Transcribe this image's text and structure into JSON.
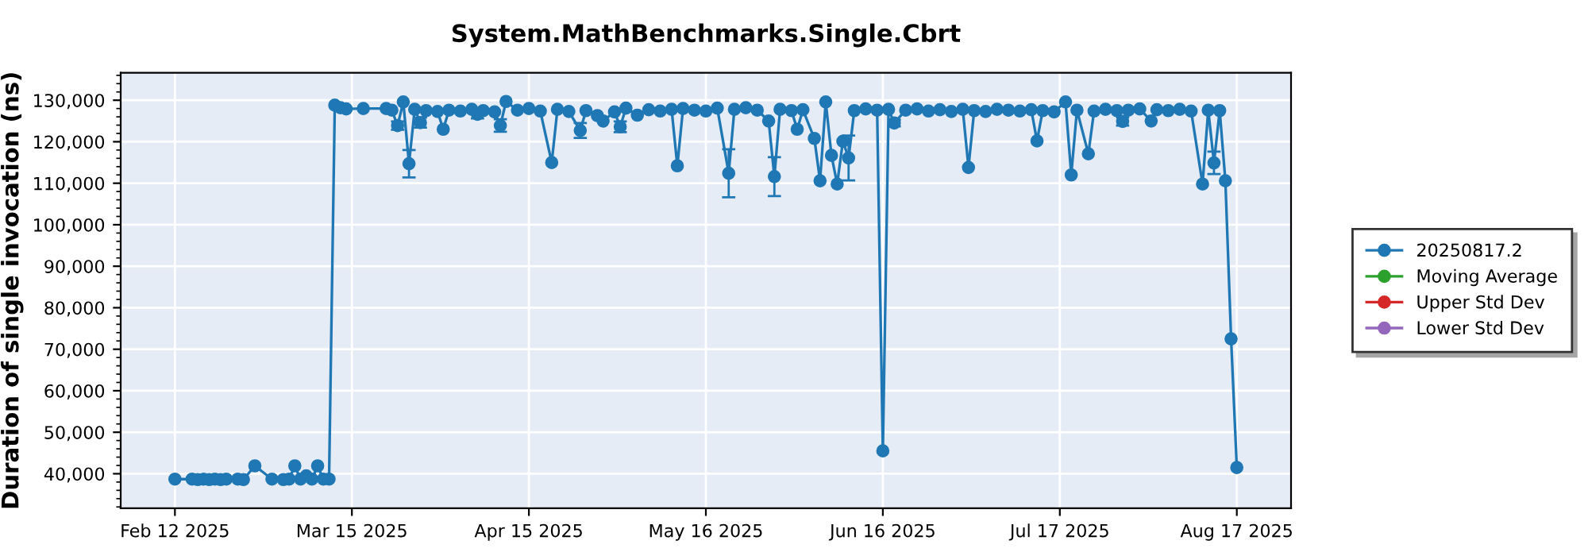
{
  "chart_data": {
    "type": "line",
    "title": "System.MathBenchmarks.Single.Cbrt",
    "ylabel": "Duration of single invocation (ns)",
    "xlim": [
      "2025-02-02T12:00",
      "2025-08-26T12:00"
    ],
    "xticks": [
      {
        "value": "2025-02-12",
        "label": "Feb 12 2025"
      },
      {
        "value": "2025-03-15",
        "label": "Mar 15 2025"
      },
      {
        "value": "2025-04-15",
        "label": "Apr 15 2025"
      },
      {
        "value": "2025-05-16",
        "label": "May 16 2025"
      },
      {
        "value": "2025-06-16",
        "label": "Jun 16 2025"
      },
      {
        "value": "2025-07-17",
        "label": "Jul 17 2025"
      },
      {
        "value": "2025-08-17",
        "label": "Aug 17 2025"
      }
    ],
    "ylim": [
      31700,
      136600
    ],
    "yticks": [
      {
        "value": 40000,
        "label": "40,000"
      },
      {
        "value": 50000,
        "label": "50,000"
      },
      {
        "value": 60000,
        "label": "60,000"
      },
      {
        "value": 70000,
        "label": "70,000"
      },
      {
        "value": 80000,
        "label": "80,000"
      },
      {
        "value": 90000,
        "label": "90,000"
      },
      {
        "value": 100000,
        "label": "100,000"
      },
      {
        "value": 110000,
        "label": "110,000"
      },
      {
        "value": 120000,
        "label": "120,000"
      },
      {
        "value": 130000,
        "label": "130,000"
      }
    ],
    "grid": true,
    "legend": "right",
    "marker": "circle",
    "line_style": "solid",
    "series": [
      {
        "name": "20250817.2",
        "color": "#1f77b4",
        "x": [
          "2025-02-12",
          "2025-02-15",
          "2025-02-16",
          "2025-02-17",
          "2025-02-18",
          "2025-02-19",
          "2025-02-20",
          "2025-02-21",
          "2025-02-23",
          "2025-02-24",
          "2025-02-26",
          "2025-03-01",
          "2025-03-03",
          "2025-03-04",
          "2025-03-05",
          "2025-03-06",
          "2025-03-07",
          "2025-03-08",
          "2025-03-09",
          "2025-03-10",
          "2025-03-11",
          "2025-03-12",
          "2025-03-13",
          "2025-03-14",
          "2025-03-17",
          "2025-03-21",
          "2025-03-22",
          "2025-03-23",
          "2025-03-24",
          "2025-03-25",
          "2025-03-26",
          "2025-03-27",
          "2025-03-28",
          "2025-03-30",
          "2025-03-31",
          "2025-04-01",
          "2025-04-03",
          "2025-04-05",
          "2025-04-06",
          "2025-04-07",
          "2025-04-09",
          "2025-04-10",
          "2025-04-11",
          "2025-04-13",
          "2025-04-15",
          "2025-04-17",
          "2025-04-19",
          "2025-04-20",
          "2025-04-22",
          "2025-04-24",
          "2025-04-25",
          "2025-04-27",
          "2025-04-28",
          "2025-04-30",
          "2025-05-01",
          "2025-05-02",
          "2025-05-04",
          "2025-05-06",
          "2025-05-08",
          "2025-05-10",
          "2025-05-11",
          "2025-05-12",
          "2025-05-14",
          "2025-05-16",
          "2025-05-18",
          "2025-05-20",
          "2025-05-21",
          "2025-05-23",
          "2025-05-25",
          "2025-05-27",
          "2025-05-28",
          "2025-05-29",
          "2025-05-31",
          "2025-06-01",
          "2025-06-02",
          "2025-06-04",
          "2025-06-05",
          "2025-06-06",
          "2025-06-07",
          "2025-06-08",
          "2025-06-09",
          "2025-06-10",
          "2025-06-11",
          "2025-06-13",
          "2025-06-15",
          "2025-06-16",
          "2025-06-17",
          "2025-06-18",
          "2025-06-20",
          "2025-06-22",
          "2025-06-24",
          "2025-06-26",
          "2025-06-28",
          "2025-06-30",
          "2025-07-01",
          "2025-07-02",
          "2025-07-04",
          "2025-07-06",
          "2025-07-08",
          "2025-07-10",
          "2025-07-12",
          "2025-07-13",
          "2025-07-14",
          "2025-07-16",
          "2025-07-18",
          "2025-07-19",
          "2025-07-20",
          "2025-07-22",
          "2025-07-23",
          "2025-07-25",
          "2025-07-27",
          "2025-07-28",
          "2025-07-29",
          "2025-07-31",
          "2025-08-02",
          "2025-08-03",
          "2025-08-05",
          "2025-08-07",
          "2025-08-09",
          "2025-08-11",
          "2025-08-12",
          "2025-08-13",
          "2025-08-14",
          "2025-08-15",
          "2025-08-16",
          "2025-08-17"
        ],
        "values": [
          38700,
          38700,
          38600,
          38700,
          38600,
          38700,
          38600,
          38700,
          38700,
          38600,
          41900,
          38700,
          38600,
          38700,
          41900,
          38700,
          39500,
          38700,
          41900,
          38700,
          38700,
          128800,
          128200,
          127900,
          128000,
          128000,
          127600,
          123900,
          129600,
          114700,
          127800,
          124600,
          127500,
          127300,
          123000,
          127600,
          127400,
          127800,
          126600,
          127500,
          127200,
          123900,
          129700,
          127600,
          128000,
          127400,
          115000,
          127800,
          127300,
          122700,
          127500,
          126300,
          125000,
          127200,
          123600,
          128100,
          126400,
          127700,
          127400,
          127800,
          114200,
          128000,
          127600,
          127400,
          128100,
          112400,
          127800,
          128200,
          127600,
          125000,
          111600,
          127800,
          127500,
          123000,
          127700,
          120800,
          110600,
          129600,
          116700,
          109800,
          120100,
          116100,
          127500,
          127900,
          127600,
          45500,
          127800,
          124500,
          127600,
          127900,
          127400,
          127700,
          127300,
          127800,
          113800,
          127500,
          127300,
          127800,
          127600,
          127400,
          127700,
          120200,
          127500,
          127200,
          129600,
          112000,
          127600,
          117100,
          127400,
          127800,
          127500,
          124900,
          127600,
          127900,
          125000,
          127700,
          127500,
          127800,
          127400,
          109800,
          127600,
          114900,
          127500,
          110600,
          72500,
          41500
        ],
        "errors": [
          null,
          null,
          null,
          null,
          null,
          null,
          null,
          null,
          null,
          null,
          null,
          null,
          null,
          null,
          null,
          null,
          null,
          null,
          null,
          null,
          null,
          null,
          null,
          null,
          null,
          null,
          null,
          1000,
          null,
          3300,
          null,
          1200,
          null,
          null,
          null,
          null,
          null,
          null,
          1000,
          null,
          null,
          1500,
          null,
          null,
          null,
          null,
          null,
          null,
          null,
          1800,
          null,
          null,
          null,
          null,
          1300,
          null,
          null,
          null,
          null,
          null,
          null,
          null,
          null,
          null,
          null,
          5800,
          null,
          null,
          null,
          null,
          4700,
          null,
          null,
          null,
          null,
          null,
          null,
          null,
          null,
          null,
          null,
          5400,
          null,
          null,
          null,
          null,
          null,
          800,
          null,
          null,
          null,
          null,
          null,
          null,
          null,
          null,
          null,
          null,
          null,
          null,
          null,
          null,
          null,
          null,
          null,
          null,
          null,
          null,
          null,
          null,
          null,
          1000,
          null,
          null,
          null,
          null,
          null,
          null,
          null,
          null,
          null,
          2700,
          null,
          null,
          null,
          null
        ]
      },
      {
        "name": "Moving Average",
        "color": "#2ca02c"
      },
      {
        "name": "Upper Std Dev",
        "color": "#d62728"
      },
      {
        "name": "Lower Std Dev",
        "color": "#9467bd"
      }
    ]
  }
}
